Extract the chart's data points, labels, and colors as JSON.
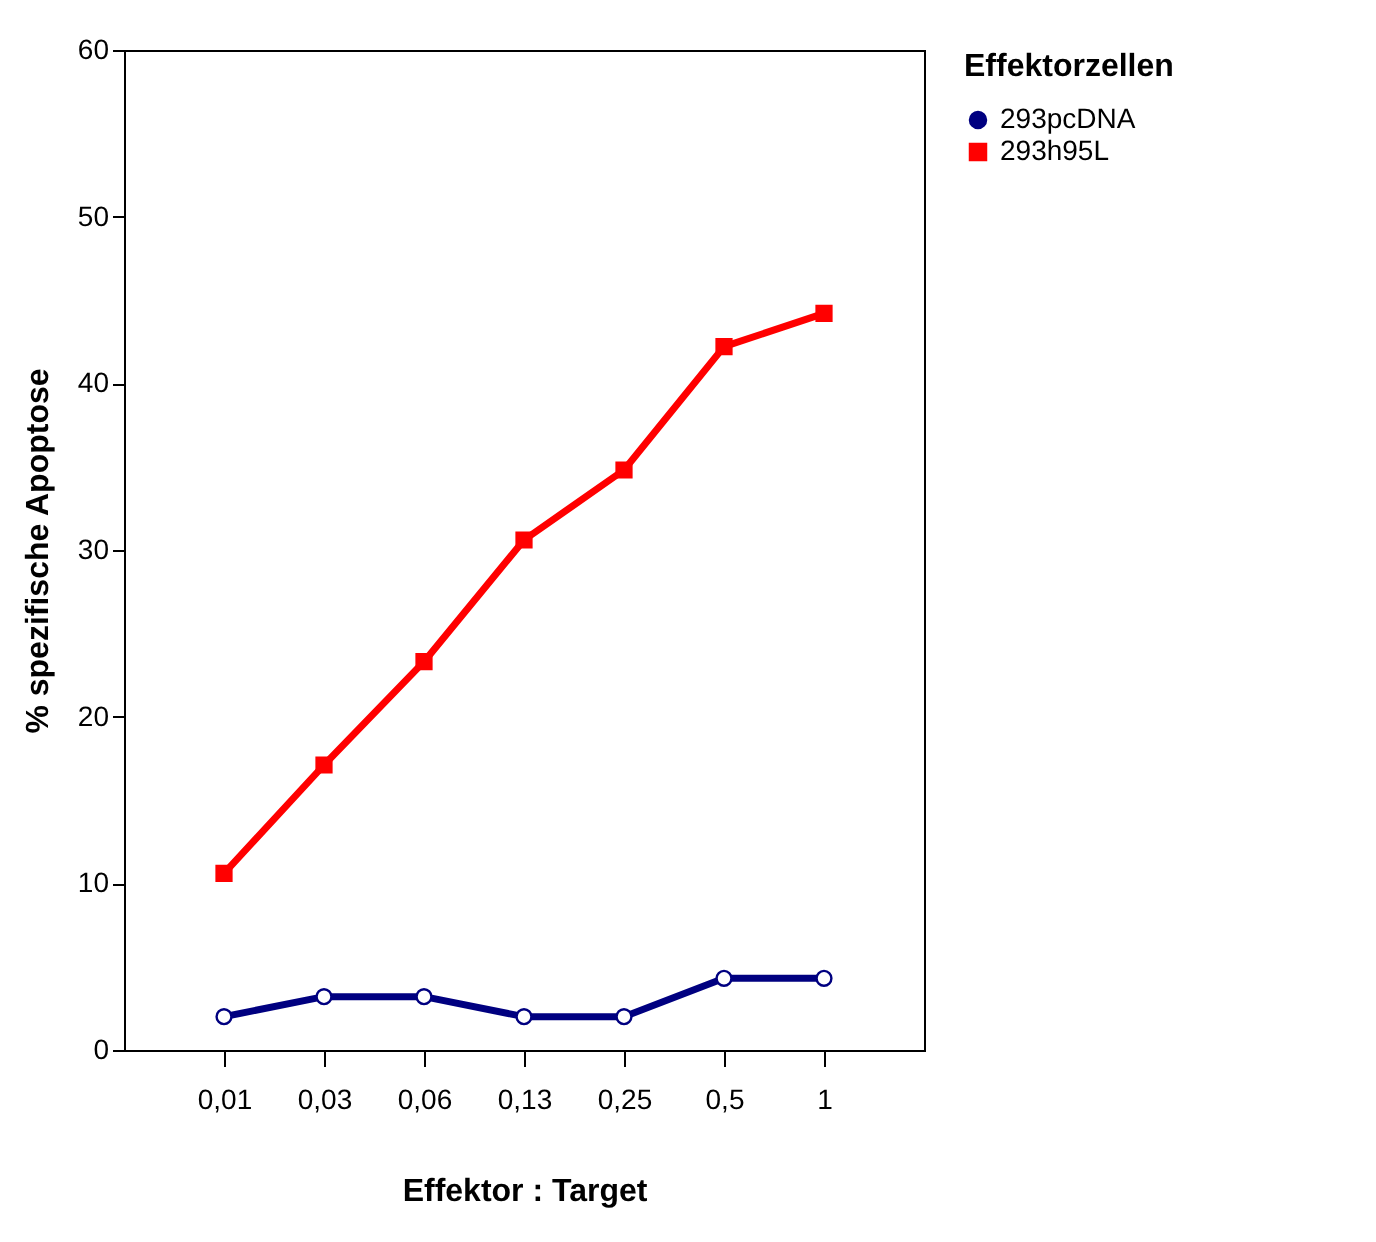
{
  "chart_data": {
    "type": "line",
    "xlabel": "Effektor : Target",
    "ylabel": "% spezifische Apoptose",
    "legend_title": "Effektorzellen",
    "legend": "right",
    "grid": false,
    "categories": [
      "0,01",
      "0,03",
      "0,06",
      "0,13",
      "0,25",
      "0,5",
      "1"
    ],
    "ylim": [
      0,
      60
    ],
    "yticks": [
      0,
      10,
      20,
      30,
      40,
      50,
      60
    ],
    "series": [
      {
        "name": "293pcDNA",
        "color": "#000080",
        "marker": "circle",
        "values": [
          2.0,
          3.2,
          3.2,
          2.0,
          2.0,
          4.3,
          4.3
        ]
      },
      {
        "name": "293h95L",
        "color": "#ff0000",
        "marker": "square",
        "values": [
          10.6,
          17.1,
          23.3,
          30.6,
          34.8,
          42.2,
          44.2
        ]
      }
    ]
  }
}
